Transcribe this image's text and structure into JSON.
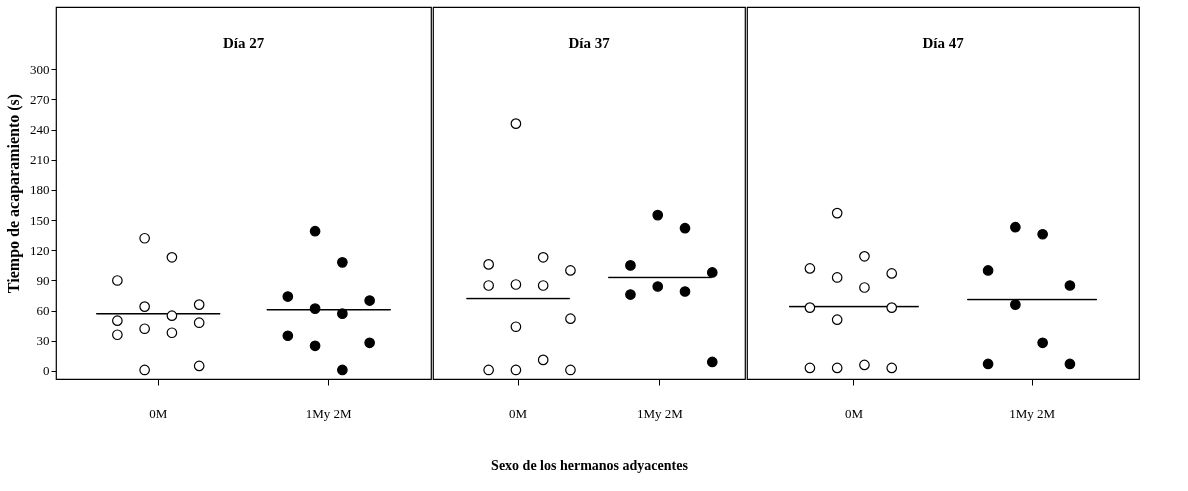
{
  "chart_data": [
    {
      "type": "scatter",
      "title": "Día 27",
      "ylabel": "Tiempo de acaparamiento (s)",
      "categories": [
        "0M",
        "1My 2M"
      ],
      "ylim": [
        -8,
        362
      ],
      "yticks": [
        0,
        30,
        60,
        90,
        120,
        150,
        180,
        210,
        240,
        270,
        300
      ],
      "grid": false,
      "series": [
        {
          "marker": "circle",
          "color": "#ffffff",
          "x": [
            "0M",
            "0M",
            "0M",
            "0M",
            "0M",
            "0M",
            "0M",
            "0M",
            "0M",
            "0M",
            "0M",
            "0M",
            "0M"
          ],
          "values": [
            132,
            113,
            90,
            66,
            64,
            55,
            50,
            48,
            42,
            38,
            36,
            5,
            1
          ]
        },
        {
          "marker": "circle",
          "color": "#000000",
          "x": [
            "1My 2M",
            "1My 2M",
            "1My 2M",
            "1My 2M",
            "1My 2M",
            "1My 2M",
            "1My 2M",
            "1My 2M",
            "1My 2M",
            "1My 2M"
          ],
          "values": [
            139,
            108,
            74,
            70,
            62,
            57,
            35,
            28,
            25,
            1
          ]
        },
        {
          "type": "box",
          "color": "#000000",
          "boxes": [
            {
              "low": 57,
              "q1": 57,
              "median": 57,
              "q3": 57,
              "high": 57
            },
            {
              "low": 61,
              "q1": 61,
              "median": 61,
              "q3": 61,
              "high": 61
            }
          ]
        }
      ]
    },
    {
      "type": "scatter",
      "title": "Día 37",
      "xlabel": "Sexo de los hermanos adyacentes",
      "categories": [
        "0M",
        "1My 2M"
      ],
      "ylim": [
        -8,
        362
      ],
      "tick_labels": "x",
      "grid": false,
      "series": [
        {
          "marker": "circle",
          "color": "#ffffff",
          "x": [
            "0M",
            "0M",
            "0M",
            "0M",
            "0M",
            "0M",
            "0M",
            "0M",
            "0M",
            "0M",
            "0M",
            "0M",
            "0M"
          ],
          "values": [
            246,
            113,
            106,
            100,
            86,
            85,
            85,
            52,
            44,
            11,
            1,
            1,
            1
          ]
        },
        {
          "marker": "circle",
          "color": "#000000",
          "x": [
            "1My 2M",
            "1My 2M",
            "1My 2M",
            "1My 2M",
            "1My 2M",
            "1My 2M",
            "1My 2M",
            "1My 2M"
          ],
          "values": [
            155,
            142,
            105,
            98,
            84,
            79,
            76,
            9
          ]
        },
        {
          "type": "box",
          "color": "#000000",
          "boxes": [
            {
              "low": 72,
              "q1": 72,
              "median": 72,
              "q3": 72,
              "high": 72
            },
            {
              "low": 93,
              "q1": 93,
              "median": 93,
              "q3": 93,
              "high": 93
            }
          ]
        }
      ]
    },
    {
      "type": "scatter",
      "title": "Día 47",
      "categories": [
        "0M",
        "1My 2M"
      ],
      "ylim": [
        -8,
        362
      ],
      "tick_labels": "x",
      "grid": false,
      "series": [
        {
          "marker": "circle",
          "color": "#ffffff",
          "x": [
            "0M",
            "0M",
            "0M",
            "0M",
            "0M",
            "0M",
            "0M",
            "0M",
            "0M",
            "0M",
            "0M",
            "0M",
            "0M"
          ],
          "values": [
            157,
            114,
            102,
            97,
            93,
            83,
            63,
            63,
            51,
            6,
            3,
            3,
            3
          ]
        },
        {
          "marker": "circle",
          "color": "#000000",
          "x": [
            "1My 2M",
            "1My 2M",
            "1My 2M",
            "1My 2M",
            "1My 2M",
            "1My 2M",
            "1My 2M",
            "1My 2M"
          ],
          "values": [
            143,
            136,
            100,
            85,
            66,
            28,
            7,
            7
          ]
        },
        {
          "type": "box",
          "color": "#000000",
          "boxes": [
            {
              "low": 64,
              "q1": 64,
              "median": 64,
              "q3": 64,
              "high": 64
            },
            {
              "low": 71,
              "q1": 71,
              "median": 71,
              "q3": 71,
              "high": 71
            }
          ]
        }
      ]
    }
  ]
}
